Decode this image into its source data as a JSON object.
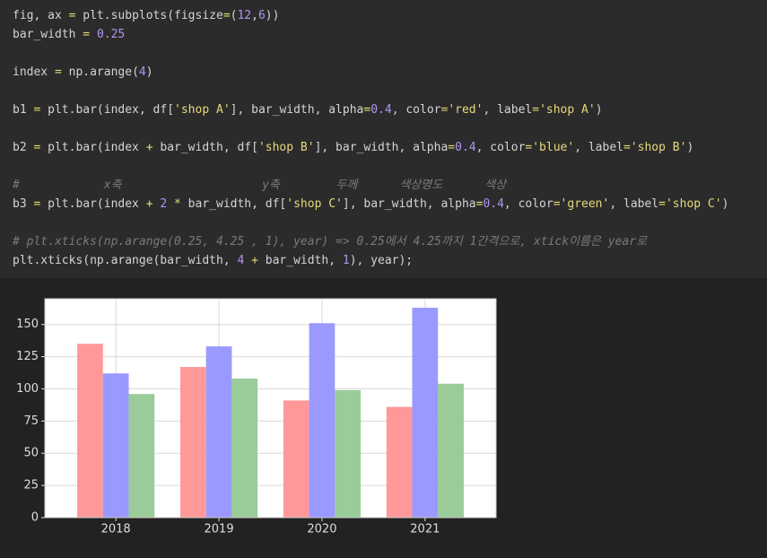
{
  "code": {
    "blocks": [
      [
        "fig, ax = plt.subplots(figsize=(12,6))",
        "bar_width = 0.25"
      ],
      [
        "index = np.arange(4)"
      ],
      [
        "b1 = plt.bar(index, df['shop A'], bar_width, alpha=0.4, color='red', label='shop A')"
      ],
      [
        "b2 = plt.bar(index + bar_width, df['shop B'], bar_width, alpha=0.4, color='blue', label='shop B')"
      ],
      [
        "#            x축                    y축        두께      색상명도      색상",
        "b3 = plt.bar(index + 2 * bar_width, df['shop C'], bar_width, alpha=0.4, color='green', label='shop C')"
      ],
      [
        "# plt.xticks(np.arange(0.25, 4.25 , 1), year) => 0.25에서 4.25까지 1간격으로, xtick이름은 year로",
        "plt.xticks(np.arange(bar_width, 4 + bar_width, 1), year);"
      ]
    ]
  },
  "chart_data": {
    "type": "bar",
    "categories": [
      "2018",
      "2019",
      "2020",
      "2021"
    ],
    "series": [
      {
        "color": "#ff9999",
        "values": [
          135,
          117,
          91,
          86
        ]
      },
      {
        "color": "#9999ff",
        "values": [
          112,
          133,
          151,
          163
        ]
      },
      {
        "color": "#99cc99",
        "values": [
          96,
          108,
          99,
          104
        ]
      }
    ],
    "ylim": [
      0,
      170
    ],
    "yticks": [
      0,
      25,
      50,
      75,
      100,
      125,
      150
    ],
    "grid": true
  }
}
